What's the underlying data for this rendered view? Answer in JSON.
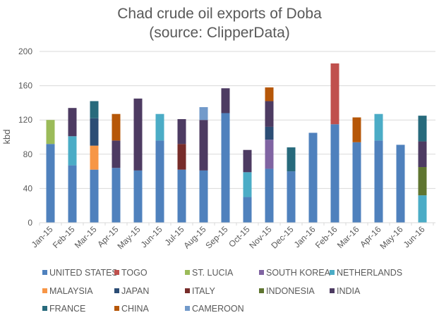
{
  "chart_data": {
    "type": "bar",
    "stacked": true,
    "title": "Chad crude oil exports of Doba",
    "subtitle": "(source: ClipperData)",
    "xlabel": "",
    "ylabel": "kbd",
    "ylim": [
      0,
      200
    ],
    "yticks": [
      0,
      40,
      80,
      120,
      160,
      200
    ],
    "grid": true,
    "legend_position": "bottom",
    "categories": [
      "Jan-15",
      "Feb-15",
      "Mar-15",
      "Apr-15",
      "May-15",
      "Jun-15",
      "Jul-15",
      "Aug-15",
      "Sep-15",
      "Oct-15",
      "Nov-15",
      "Dec-15",
      "Jan-16",
      "Feb-16",
      "Mar-16",
      "Apr-16",
      "May-16",
      "Jun-16"
    ],
    "series": [
      {
        "name": "UNITED STATES",
        "color": "#4f81bd",
        "values": [
          92,
          67,
          62,
          64,
          61,
          96,
          62,
          61,
          128,
          30,
          63,
          60,
          105,
          115,
          94,
          96,
          91,
          0
        ]
      },
      {
        "name": "TOGO",
        "color": "#c0504d",
        "values": [
          0,
          0,
          0,
          0,
          0,
          0,
          0,
          0,
          0,
          0,
          0,
          0,
          0,
          71,
          0,
          0,
          0,
          0
        ]
      },
      {
        "name": "ST. LUCIA",
        "color": "#9bbb59",
        "values": [
          28,
          0,
          0,
          0,
          0,
          0,
          0,
          0,
          0,
          0,
          0,
          0,
          0,
          0,
          0,
          0,
          0,
          0
        ]
      },
      {
        "name": "SOUTH KOREA",
        "color": "#8064a2",
        "values": [
          0,
          0,
          0,
          0,
          0,
          0,
          0,
          0,
          0,
          0,
          34,
          0,
          0,
          0,
          0,
          0,
          0,
          0
        ]
      },
      {
        "name": "NETHERLANDS",
        "color": "#4bacc6",
        "values": [
          0,
          34,
          0,
          0,
          0,
          31,
          0,
          0,
          0,
          29,
          0,
          0,
          0,
          0,
          0,
          31,
          0,
          32
        ]
      },
      {
        "name": "MALAYSIA",
        "color": "#f79646",
        "values": [
          0,
          0,
          28,
          0,
          0,
          0,
          0,
          0,
          0,
          0,
          0,
          0,
          0,
          0,
          0,
          0,
          0,
          0
        ]
      },
      {
        "name": "JAPAN",
        "color": "#2c4d75",
        "values": [
          0,
          0,
          32,
          0,
          0,
          0,
          0,
          0,
          0,
          0,
          15,
          0,
          0,
          0,
          0,
          0,
          0,
          0
        ]
      },
      {
        "name": "ITALY",
        "color": "#772c2a",
        "values": [
          0,
          0,
          0,
          0,
          0,
          0,
          30,
          0,
          0,
          0,
          0,
          0,
          0,
          0,
          0,
          0,
          0,
          0
        ]
      },
      {
        "name": "INDONESIA",
        "color": "#5f7530",
        "values": [
          0,
          0,
          0,
          0,
          0,
          0,
          0,
          0,
          0,
          0,
          0,
          0,
          0,
          0,
          0,
          0,
          0,
          33
        ]
      },
      {
        "name": "INDIA",
        "color": "#4d3b62",
        "values": [
          0,
          33,
          0,
          32,
          84,
          0,
          29,
          59,
          29,
          26,
          30,
          0,
          0,
          0,
          0,
          0,
          0,
          30
        ]
      },
      {
        "name": "FRANCE",
        "color": "#276a7c",
        "values": [
          0,
          0,
          20,
          0,
          0,
          0,
          0,
          0,
          0,
          0,
          0,
          28,
          0,
          0,
          0,
          0,
          0,
          30
        ]
      },
      {
        "name": "CHINA",
        "color": "#b65708",
        "values": [
          0,
          0,
          0,
          31,
          0,
          0,
          0,
          0,
          0,
          0,
          16,
          0,
          0,
          0,
          29,
          0,
          0,
          0
        ]
      },
      {
        "name": "CAMEROON",
        "color": "#729aca",
        "values": [
          0,
          0,
          0,
          0,
          0,
          0,
          0,
          15,
          0,
          0,
          0,
          0,
          0,
          0,
          0,
          0,
          0,
          0
        ]
      }
    ]
  }
}
